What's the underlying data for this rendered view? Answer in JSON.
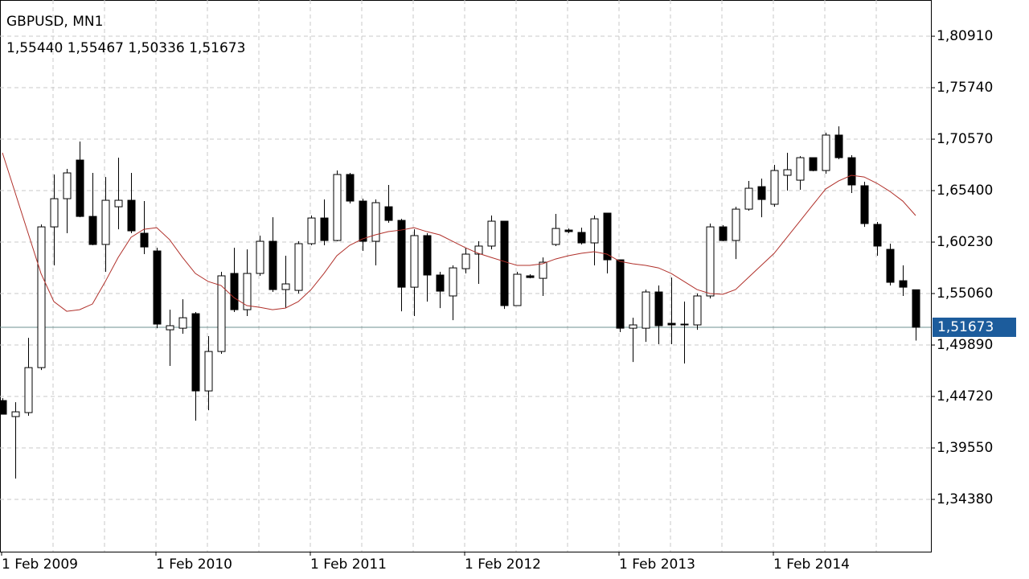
{
  "chart_data": {
    "type": "candlestick",
    "title": "GBPUSD, MN1",
    "ohlc_text": "1,55440 1,55467 1,50336 1,51673",
    "categories": [
      "1 Feb 2009",
      null,
      null,
      null,
      null,
      null,
      null,
      null,
      null,
      null,
      null,
      null,
      "1 Feb 2010",
      null,
      null,
      null,
      null,
      null,
      null,
      null,
      null,
      null,
      null,
      null,
      "1 Feb 2011",
      null,
      null,
      null,
      null,
      null,
      null,
      null,
      null,
      null,
      null,
      null,
      "1 Feb 2012",
      null,
      null,
      null,
      null,
      null,
      null,
      null,
      null,
      null,
      null,
      null,
      "1 Feb 2013",
      null,
      null,
      null,
      null,
      null,
      null,
      null,
      null,
      null,
      null,
      null,
      "1 Feb 2014",
      null,
      null,
      null,
      null,
      null,
      null,
      null,
      null,
      null,
      null,
      null
    ],
    "open": [
      1.4431,
      1.427,
      1.431,
      1.4762,
      1.6176,
      1.6459,
      1.6847,
      1.6281,
      1.5999,
      1.6378,
      1.6443,
      1.6112,
      1.5934,
      1.5142,
      1.5158,
      1.5304,
      1.4528,
      1.4924,
      1.5708,
      1.5344,
      1.5708,
      1.6031,
      1.5546,
      1.5538,
      1.6007,
      1.6265,
      1.6039,
      1.6702,
      1.6435,
      1.6031,
      1.6378,
      1.6241,
      1.557,
      1.6088,
      1.5692,
      1.5482,
      1.5756,
      1.5902,
      1.5983,
      1.6233,
      1.5385,
      1.5684,
      1.5659,
      1.5999,
      1.6144,
      1.612,
      1.6015,
      1.6314,
      1.5845,
      1.5158,
      1.5158,
      1.5522,
      1.5207,
      1.5199,
      1.5191,
      1.5482,
      1.6176,
      1.6039,
      1.6354,
      1.658,
      1.6403,
      1.6694,
      1.6645,
      1.6871,
      1.6742,
      1.7098,
      1.6871,
      1.6589,
      1.6201,
      1.595,
      1.5635,
      1.5544
    ],
    "high": [
      1.4455,
      1.4415,
      1.5061,
      1.62,
      1.6702,
      1.6758,
      1.7033,
      1.6718,
      1.6677,
      1.6871,
      1.6718,
      1.6435,
      1.5966,
      1.5344,
      1.5449,
      1.532,
      1.5078,
      1.5724,
      1.5966,
      1.595,
      1.6088,
      1.6273,
      1.5886,
      1.6031,
      1.629,
      1.6451,
      1.6742,
      1.6718,
      1.6459,
      1.6451,
      1.6597,
      1.6257,
      1.6152,
      1.6112,
      1.5724,
      1.5789,
      1.5966,
      1.6031,
      1.629,
      1.6233,
      1.5724,
      1.57,
      1.5869,
      1.6306,
      1.616,
      1.6168,
      1.629,
      1.6314,
      1.5845,
      1.5263,
      1.5546,
      1.5587,
      1.5667,
      1.5425,
      1.5506,
      1.6209,
      1.6193,
      1.6378,
      1.6637,
      1.6661,
      1.6799,
      1.692,
      1.6887,
      1.6871,
      1.7122,
      1.7186,
      1.6896,
      1.6629,
      1.6225,
      1.6007,
      1.5789,
      1.55467
    ],
    "low": [
      1.4294,
      1.3647,
      1.4278,
      1.4738,
      1.5789,
      1.6112,
      1.6273,
      1.5991,
      1.5724,
      1.6152,
      1.6112,
      1.5902,
      1.5158,
      1.4779,
      1.5102,
      1.4229,
      1.4334,
      1.49,
      1.532,
      1.528,
      1.5684,
      1.5522,
      1.536,
      1.5506,
      1.5991,
      1.5991,
      1.6031,
      1.6411,
      1.5934,
      1.5789,
      1.6217,
      1.5328,
      1.528,
      1.5425,
      1.536,
      1.5239,
      1.5708,
      1.5603,
      1.595,
      1.5352,
      1.5385,
      1.5659,
      1.5482,
      1.5983,
      1.6112,
      1.5999,
      1.5789,
      1.5708,
      1.5118,
      1.4819,
      1.5021,
      1.4997,
      1.4997,
      1.4803,
      1.5142,
      1.5457,
      1.6031,
      1.5853,
      1.6338,
      1.6273,
      1.6378,
      1.654,
      1.6548,
      1.6734,
      1.671,
      1.6855,
      1.6516,
      1.6176,
      1.5886,
      1.5587,
      1.5482,
      1.50336
    ],
    "close": [
      1.4294,
      1.4318,
      1.4762,
      1.6176,
      1.6459,
      1.6718,
      1.6281,
      1.5999,
      1.6443,
      1.6443,
      1.6136,
      1.5974,
      1.5199,
      1.5183,
      1.5263,
      1.4528,
      1.4924,
      1.5684,
      1.5344,
      1.5708,
      1.6031,
      1.5546,
      1.5603,
      1.6007,
      1.6265,
      1.6039,
      1.6702,
      1.6435,
      1.6031,
      1.6419,
      1.6241,
      1.557,
      1.6088,
      1.5692,
      1.553,
      1.5764,
      1.5902,
      1.5983,
      1.6233,
      1.5385,
      1.57,
      1.5667,
      1.5821,
      1.616,
      1.6128,
      1.6015,
      1.6257,
      1.5845,
      1.5158,
      1.5191,
      1.5522,
      1.5183,
      1.5191,
      1.5191,
      1.5482,
      1.6176,
      1.6039,
      1.6354,
      1.6564,
      1.6451,
      1.6742,
      1.675,
      1.6871,
      1.6742,
      1.7098,
      1.6871,
      1.6597,
      1.6209,
      1.5983,
      1.5619,
      1.557,
      1.51673
    ],
    "ma": {
      "color": "#b0302a",
      "values": [
        1.692,
        1.6516,
        1.6112,
        1.5708,
        1.5425,
        1.5328,
        1.5344,
        1.5401,
        1.5627,
        1.5869,
        1.6071,
        1.6152,
        1.6168,
        1.6047,
        1.5869,
        1.5708,
        1.5627,
        1.5587,
        1.5465,
        1.5385,
        1.5368,
        1.5344,
        1.536,
        1.5425,
        1.5546,
        1.5708,
        1.5886,
        1.5991,
        1.6055,
        1.6096,
        1.6128,
        1.6144,
        1.6168,
        1.6128,
        1.6096,
        1.6031,
        1.5966,
        1.591,
        1.5869,
        1.5829,
        1.5789,
        1.5789,
        1.5805,
        1.5853,
        1.5886,
        1.591,
        1.5926,
        1.5902,
        1.5829,
        1.5805,
        1.5789,
        1.5764,
        1.5708,
        1.5627,
        1.5546,
        1.5506,
        1.5498,
        1.5546,
        1.5668,
        1.5789,
        1.591,
        1.6071,
        1.6233,
        1.6395,
        1.6556,
        1.6637,
        1.6694,
        1.6677,
        1.6613,
        1.6532,
        1.6435,
        1.629
      ]
    },
    "last_price": {
      "value": 1.51673,
      "label": "1,51673",
      "color": "#1c5c9c"
    },
    "ylim": [
      1.2913,
      1.8455
    ],
    "yticks": [
      {
        "value": 1.8091,
        "label": "1,80910"
      },
      {
        "value": 1.7574,
        "label": "1,75740"
      },
      {
        "value": 1.7057,
        "label": "1,70570"
      },
      {
        "value": 1.654,
        "label": "1,65400"
      },
      {
        "value": 1.6023,
        "label": "1,60230"
      },
      {
        "value": 1.5506,
        "label": "1,55060"
      },
      {
        "value": 1.4989,
        "label": "1,49890"
      },
      {
        "value": 1.4472,
        "label": "1,44720"
      },
      {
        "value": 1.3955,
        "label": "1,39550"
      },
      {
        "value": 1.3438,
        "label": "1,34380"
      }
    ],
    "grid": true
  }
}
